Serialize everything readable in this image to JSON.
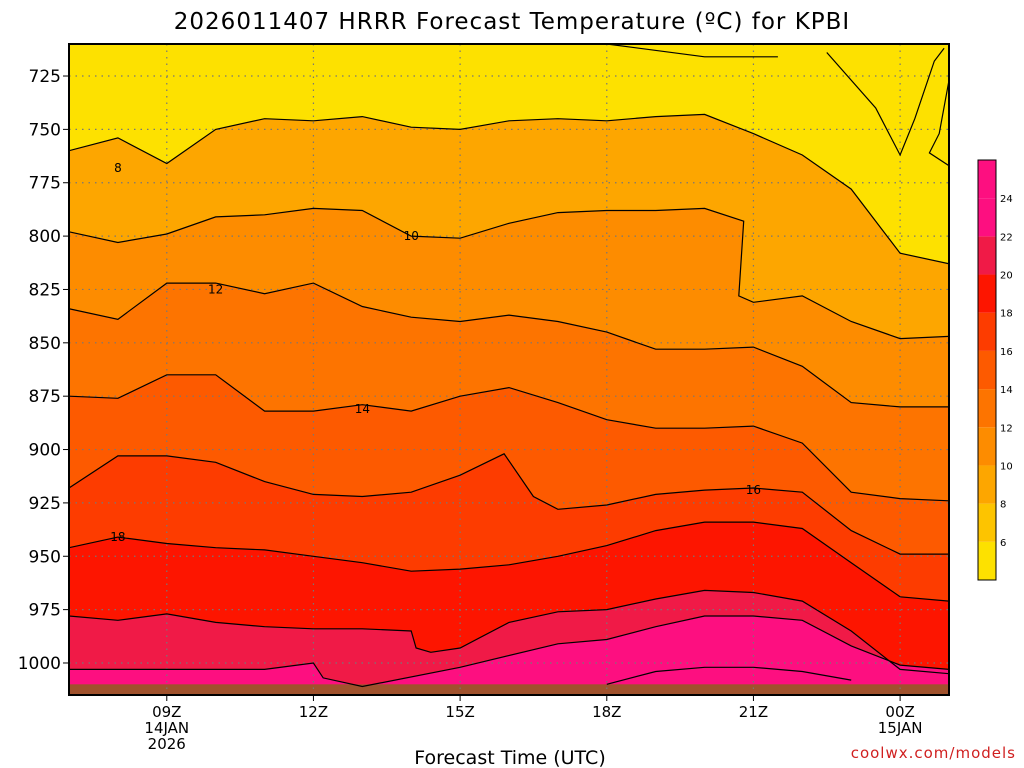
{
  "chart_data": {
    "type": "heatmap",
    "title": "2026011407 HRRR Forecast Temperature (ºC) for KPBI",
    "xlabel": "Forecast Time (UTC)",
    "ylabel": "",
    "x_ticks": [
      {
        "hour": 9,
        "lines": [
          "09Z",
          "14JAN",
          "2026"
        ]
      },
      {
        "hour": 12,
        "lines": [
          "12Z"
        ]
      },
      {
        "hour": 15,
        "lines": [
          "15Z"
        ]
      },
      {
        "hour": 18,
        "lines": [
          "18Z"
        ]
      },
      {
        "hour": 21,
        "lines": [
          "21Z"
        ]
      },
      {
        "hour": 24,
        "lines": [
          "00Z",
          "15JAN"
        ]
      }
    ],
    "xlim": [
      7,
      25
    ],
    "y_ticks": [
      725,
      750,
      775,
      800,
      825,
      850,
      875,
      900,
      925,
      950,
      975,
      1000
    ],
    "ylim": [
      710,
      1015
    ],
    "y_scale": "pressure (mb), inverted",
    "grid": true,
    "surface_level_mb": 1010,
    "contour_interval": 2,
    "contours": [
      {
        "value": 6,
        "label": "",
        "points": [
          [
            18,
            710
          ],
          [
            20,
            716
          ],
          [
            21.5,
            716
          ]
        ]
      },
      {
        "value": 6,
        "label": "",
        "points": [
          [
            22.5,
            714
          ],
          [
            23.5,
            740
          ],
          [
            24,
            762
          ],
          [
            24.3,
            745
          ],
          [
            24.7,
            718
          ],
          [
            24.9,
            712
          ]
        ]
      },
      {
        "value": 6,
        "label": "",
        "points": [
          [
            25,
            727
          ],
          [
            24.8,
            752
          ],
          [
            24.6,
            761
          ],
          [
            25,
            767
          ]
        ]
      },
      {
        "value": 8,
        "label": "8",
        "labelAt": [
          8,
          768
        ],
        "points": [
          [
            7,
            760
          ],
          [
            8,
            754
          ],
          [
            9,
            766
          ],
          [
            10,
            750
          ],
          [
            11,
            745
          ],
          [
            12,
            746
          ],
          [
            13,
            744
          ],
          [
            14,
            749
          ],
          [
            15,
            750
          ],
          [
            16,
            746
          ],
          [
            17,
            745
          ],
          [
            18,
            746
          ],
          [
            19,
            744
          ],
          [
            20,
            743
          ],
          [
            21,
            752
          ],
          [
            22,
            762
          ],
          [
            23,
            778
          ],
          [
            24,
            808
          ],
          [
            25,
            813
          ]
        ]
      },
      {
        "value": 10,
        "label": "10",
        "labelAt": [
          14,
          800
        ],
        "points": [
          [
            7,
            798
          ],
          [
            8,
            803
          ],
          [
            9,
            799
          ],
          [
            10,
            791
          ],
          [
            11,
            790
          ],
          [
            12,
            787
          ],
          [
            13,
            788
          ],
          [
            14,
            800
          ],
          [
            15,
            801
          ],
          [
            16,
            794
          ],
          [
            17,
            789
          ],
          [
            18,
            788
          ],
          [
            19,
            788
          ],
          [
            20,
            787
          ],
          [
            20.8,
            793
          ],
          [
            20.7,
            828
          ],
          [
            21,
            831
          ],
          [
            22,
            828
          ],
          [
            23,
            840
          ],
          [
            24,
            848
          ],
          [
            25,
            847
          ]
        ]
      },
      {
        "value": 12,
        "label": "12",
        "labelAt": [
          10,
          825
        ],
        "points": [
          [
            7,
            834
          ],
          [
            8,
            839
          ],
          [
            9,
            822
          ],
          [
            10,
            822
          ],
          [
            11,
            827
          ],
          [
            12,
            822
          ],
          [
            13,
            833
          ],
          [
            14,
            838
          ],
          [
            15,
            840
          ],
          [
            16,
            837
          ],
          [
            17,
            840
          ],
          [
            18,
            845
          ],
          [
            19,
            853
          ],
          [
            20,
            853
          ],
          [
            21,
            852
          ],
          [
            22,
            861
          ],
          [
            23,
            878
          ],
          [
            24,
            880
          ],
          [
            25,
            880
          ]
        ]
      },
      {
        "value": 14,
        "label": "14",
        "labelAt": [
          13,
          881
        ],
        "points": [
          [
            7,
            875
          ],
          [
            8,
            876
          ],
          [
            9,
            865
          ],
          [
            10,
            865
          ],
          [
            11,
            882
          ],
          [
            12,
            882
          ],
          [
            13,
            879
          ],
          [
            14,
            882
          ],
          [
            15,
            875
          ],
          [
            16,
            871
          ],
          [
            17,
            878
          ],
          [
            18,
            886
          ],
          [
            19,
            890
          ],
          [
            20,
            890
          ],
          [
            21,
            889
          ],
          [
            22,
            897
          ],
          [
            23,
            920
          ],
          [
            24,
            923
          ],
          [
            25,
            924
          ]
        ]
      },
      {
        "value": 16,
        "label": "16",
        "labelAt": [
          21,
          919
        ],
        "points": [
          [
            7,
            918
          ],
          [
            8,
            903
          ],
          [
            9,
            903
          ],
          [
            10,
            906
          ],
          [
            11,
            915
          ],
          [
            12,
            921
          ],
          [
            13,
            922
          ],
          [
            14,
            920
          ],
          [
            15,
            912
          ],
          [
            15.9,
            902
          ],
          [
            16.5,
            922
          ],
          [
            17,
            928
          ],
          [
            18,
            926
          ],
          [
            19,
            921
          ],
          [
            20,
            919
          ],
          [
            21,
            918
          ],
          [
            22,
            920
          ],
          [
            23,
            938
          ],
          [
            24,
            949
          ],
          [
            25,
            949
          ]
        ]
      },
      {
        "value": 18,
        "label": "18",
        "labelAt": [
          8,
          941
        ],
        "points": [
          [
            7,
            946
          ],
          [
            8,
            941
          ],
          [
            9,
            944
          ],
          [
            10,
            946
          ],
          [
            11,
            947
          ],
          [
            12,
            950
          ],
          [
            13,
            953
          ],
          [
            14,
            957
          ],
          [
            15,
            956
          ],
          [
            16,
            954
          ],
          [
            17,
            950
          ],
          [
            18,
            945
          ],
          [
            19,
            938
          ],
          [
            20,
            934
          ],
          [
            21,
            934
          ],
          [
            22,
            937
          ],
          [
            23,
            953
          ],
          [
            24,
            969
          ],
          [
            25,
            971
          ]
        ]
      },
      {
        "value": 20,
        "label": "",
        "points": [
          [
            7,
            978
          ],
          [
            8,
            980
          ],
          [
            9,
            977
          ],
          [
            10,
            981
          ],
          [
            11,
            983
          ],
          [
            12,
            984
          ],
          [
            13,
            984
          ],
          [
            14,
            985
          ],
          [
            14.1,
            993
          ],
          [
            14.4,
            995
          ],
          [
            15,
            993
          ],
          [
            16,
            981
          ],
          [
            17,
            976
          ],
          [
            18,
            975
          ],
          [
            19,
            970
          ],
          [
            20,
            966
          ],
          [
            21,
            967
          ],
          [
            22,
            971
          ],
          [
            23,
            985
          ],
          [
            24,
            1003
          ],
          [
            25,
            1005
          ]
        ]
      },
      {
        "value": 22,
        "label": "",
        "points": [
          [
            7,
            1003
          ],
          [
            11,
            1003
          ],
          [
            12,
            1000
          ],
          [
            12.2,
            1007
          ],
          [
            13,
            1011
          ],
          [
            15,
            1002
          ],
          [
            17,
            991
          ],
          [
            18,
            989
          ],
          [
            19,
            983
          ],
          [
            20,
            978
          ],
          [
            21,
            978
          ],
          [
            22,
            980
          ],
          [
            23,
            992
          ],
          [
            24,
            1001
          ],
          [
            25,
            1003
          ]
        ]
      },
      {
        "value": 24,
        "label": "",
        "points": [
          [
            18,
            1010
          ],
          [
            19,
            1004
          ],
          [
            20,
            1002
          ],
          [
            21,
            1002
          ],
          [
            22,
            1004
          ],
          [
            23,
            1008
          ]
        ]
      }
    ],
    "color_scale": [
      {
        "value": 6,
        "color": "#fde100"
      },
      {
        "value": 8,
        "color": "#fdc400"
      },
      {
        "value": 10,
        "color": "#fda600"
      },
      {
        "value": 12,
        "color": "#fd8c00"
      },
      {
        "value": 14,
        "color": "#fd7400"
      },
      {
        "value": 16,
        "color": "#fd5a00"
      },
      {
        "value": 18,
        "color": "#fd3c00"
      },
      {
        "value": 20,
        "color": "#fd1500"
      },
      {
        "value": 22,
        "color": "#f01a47"
      },
      {
        "value": 24,
        "color": "#fd0f80"
      }
    ],
    "colorbar_ticks": [
      6,
      8,
      10,
      12,
      14,
      16,
      18,
      20,
      22,
      24
    ],
    "colorbar_range": [
      4,
      26
    ],
    "legend_placement": "right"
  },
  "credit": "coolwx.com/models",
  "colors": {
    "background": "#ffffff",
    "ground": "#a0522d",
    "contour": "#000000",
    "grid": "#777777"
  }
}
